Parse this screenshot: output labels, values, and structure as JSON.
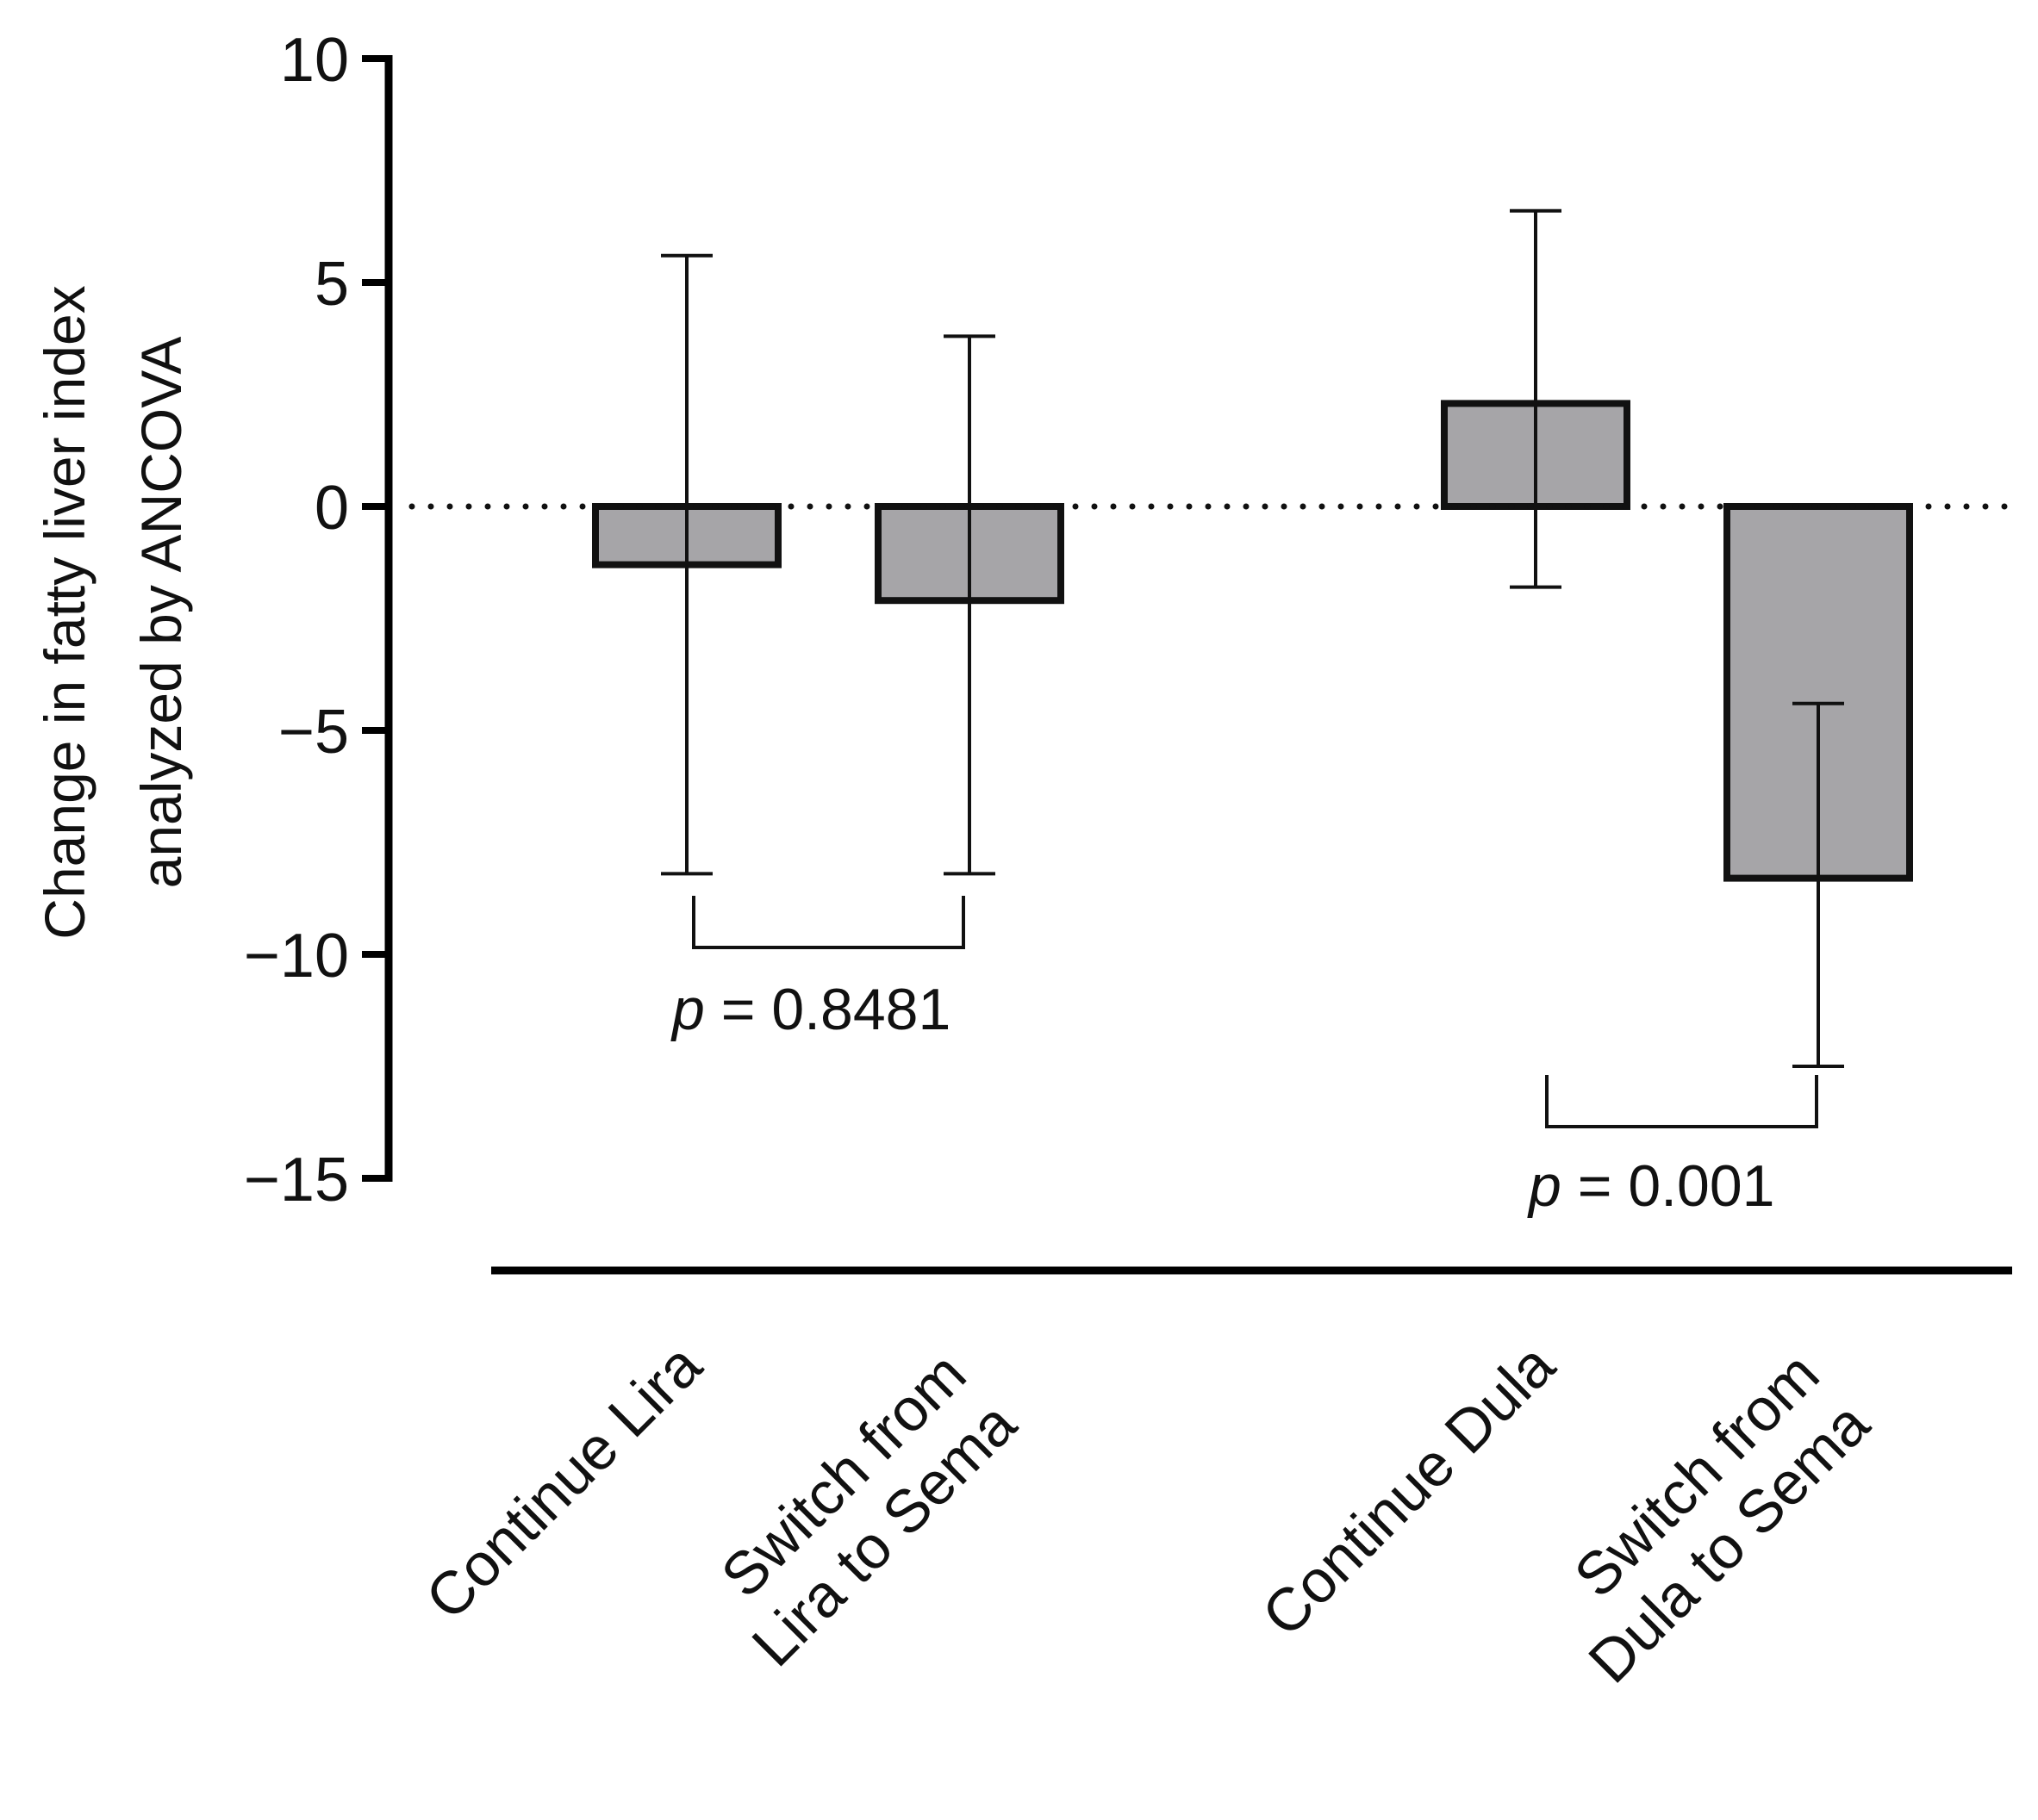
{
  "chart_data": {
    "type": "bar",
    "title": "",
    "ylabel": [
      "Change in fatty liver index",
      "analyzed  by ANCOVA"
    ],
    "xlabel": "",
    "ylim": [
      -15,
      10
    ],
    "yticks": [
      10,
      5,
      0,
      -5,
      -10,
      -15
    ],
    "ytick_labels": [
      "10",
      "5",
      "0",
      "−5",
      "−10",
      "−15"
    ],
    "reference_line": {
      "y": 0,
      "style": "dotted"
    },
    "categories": [
      [
        "Continue Lira"
      ],
      [
        "Switch from",
        "Lira to Sema"
      ],
      [
        "Continue Dula"
      ],
      [
        "Switch from",
        "Dula to Sema"
      ]
    ],
    "values": [
      -1.3,
      -2.1,
      2.3,
      -8.3
    ],
    "error_low": [
      -8.2,
      -8.2,
      -1.8,
      -12.5
    ],
    "error_high": [
      5.6,
      3.8,
      6.6,
      -4.4
    ],
    "bar_color": "#a6a5a8",
    "comparisons": [
      {
        "groups": [
          0,
          1
        ],
        "prefix": "p",
        "text": " = 0.8481"
      },
      {
        "groups": [
          2,
          3
        ],
        "prefix": "p",
        "text": " = 0.001"
      }
    ]
  }
}
